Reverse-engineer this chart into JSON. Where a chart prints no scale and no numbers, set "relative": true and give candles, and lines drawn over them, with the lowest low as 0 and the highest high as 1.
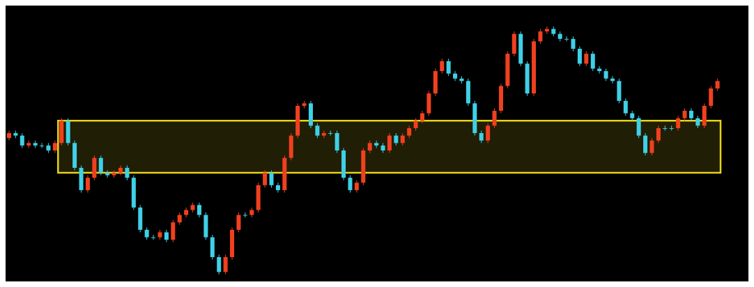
{
  "chart_data": {
    "type": "candlestick",
    "relative": true,
    "grid": false,
    "legend": false,
    "categories": [
      null,
      null,
      null,
      null,
      null,
      null,
      null,
      null,
      null,
      null,
      null,
      null,
      null,
      null,
      null,
      null,
      null,
      null,
      null,
      null,
      null,
      null,
      null,
      null,
      null,
      null,
      null,
      null,
      null,
      null,
      null,
      null,
      null,
      null,
      null,
      null,
      null,
      null,
      null,
      null,
      null,
      null,
      null,
      null,
      null,
      null,
      null,
      null,
      null,
      null,
      null,
      null,
      null,
      null,
      null,
      null,
      null,
      null,
      null,
      null,
      null,
      null,
      null,
      null,
      null,
      null,
      null,
      null,
      null,
      null,
      null,
      null,
      null,
      null,
      null,
      null,
      null,
      null,
      null,
      null,
      null,
      null,
      null,
      null,
      null,
      null,
      null,
      null,
      null,
      null,
      null,
      null,
      null,
      null,
      null,
      null,
      null,
      null,
      null,
      null,
      null,
      null,
      null,
      null,
      null,
      null,
      null,
      null,
      null
    ],
    "ohlc": [
      [
        0.55,
        0.58,
        0.54,
        0.57
      ],
      [
        0.57,
        0.58,
        0.55,
        0.56
      ],
      [
        0.56,
        0.57,
        0.51,
        0.52
      ],
      [
        0.52,
        0.54,
        0.51,
        0.53
      ],
      [
        0.53,
        0.54,
        0.51,
        0.52
      ],
      [
        0.52,
        0.53,
        0.51,
        0.52
      ],
      [
        0.52,
        0.53,
        0.49,
        0.5
      ],
      [
        0.5,
        0.54,
        0.49,
        0.53
      ],
      [
        0.53,
        0.63,
        0.52,
        0.62
      ],
      [
        0.62,
        0.63,
        0.52,
        0.53
      ],
      [
        0.53,
        0.54,
        0.42,
        0.43
      ],
      [
        0.43,
        0.44,
        0.33,
        0.34
      ],
      [
        0.34,
        0.4,
        0.33,
        0.39
      ],
      [
        0.39,
        0.48,
        0.38,
        0.47
      ],
      [
        0.47,
        0.48,
        0.4,
        0.41
      ],
      [
        0.41,
        0.42,
        0.39,
        0.4
      ],
      [
        0.4,
        0.42,
        0.39,
        0.41
      ],
      [
        0.41,
        0.44,
        0.4,
        0.43
      ],
      [
        0.43,
        0.44,
        0.38,
        0.39
      ],
      [
        0.39,
        0.4,
        0.26,
        0.27
      ],
      [
        0.27,
        0.28,
        0.17,
        0.18
      ],
      [
        0.18,
        0.19,
        0.14,
        0.15
      ],
      [
        0.15,
        0.16,
        0.14,
        0.15
      ],
      [
        0.15,
        0.18,
        0.14,
        0.17
      ],
      [
        0.17,
        0.18,
        0.13,
        0.14
      ],
      [
        0.14,
        0.22,
        0.13,
        0.21
      ],
      [
        0.21,
        0.25,
        0.2,
        0.24
      ],
      [
        0.24,
        0.27,
        0.23,
        0.26
      ],
      [
        0.26,
        0.29,
        0.25,
        0.28
      ],
      [
        0.28,
        0.29,
        0.23,
        0.24
      ],
      [
        0.24,
        0.25,
        0.14,
        0.15
      ],
      [
        0.15,
        0.16,
        0.06,
        0.07
      ],
      [
        0.07,
        0.08,
        0.0,
        0.01
      ],
      [
        0.01,
        0.08,
        0.0,
        0.07
      ],
      [
        0.07,
        0.19,
        0.06,
        0.18
      ],
      [
        0.18,
        0.25,
        0.17,
        0.24
      ],
      [
        0.24,
        0.25,
        0.23,
        0.24
      ],
      [
        0.24,
        0.27,
        0.23,
        0.26
      ],
      [
        0.26,
        0.37,
        0.25,
        0.36
      ],
      [
        0.36,
        0.42,
        0.35,
        0.41
      ],
      [
        0.41,
        0.42,
        0.35,
        0.36
      ],
      [
        0.36,
        0.37,
        0.33,
        0.34
      ],
      [
        0.34,
        0.48,
        0.33,
        0.47
      ],
      [
        0.47,
        0.57,
        0.46,
        0.56
      ],
      [
        0.56,
        0.69,
        0.55,
        0.68
      ],
      [
        0.68,
        0.7,
        0.67,
        0.69
      ],
      [
        0.69,
        0.7,
        0.59,
        0.6
      ],
      [
        0.6,
        0.61,
        0.55,
        0.56
      ],
      [
        0.56,
        0.58,
        0.55,
        0.57
      ],
      [
        0.57,
        0.58,
        0.56,
        0.57
      ],
      [
        0.57,
        0.58,
        0.49,
        0.5
      ],
      [
        0.5,
        0.51,
        0.38,
        0.39
      ],
      [
        0.39,
        0.4,
        0.33,
        0.34
      ],
      [
        0.34,
        0.38,
        0.33,
        0.37
      ],
      [
        0.37,
        0.51,
        0.36,
        0.5
      ],
      [
        0.5,
        0.54,
        0.49,
        0.53
      ],
      [
        0.53,
        0.54,
        0.51,
        0.52
      ],
      [
        0.52,
        0.53,
        0.49,
        0.5
      ],
      [
        0.5,
        0.57,
        0.49,
        0.56
      ],
      [
        0.56,
        0.57,
        0.52,
        0.53
      ],
      [
        0.53,
        0.57,
        0.52,
        0.56
      ],
      [
        0.56,
        0.6,
        0.55,
        0.59
      ],
      [
        0.59,
        0.63,
        0.58,
        0.62
      ],
      [
        0.62,
        0.66,
        0.61,
        0.65
      ],
      [
        0.65,
        0.74,
        0.64,
        0.73
      ],
      [
        0.73,
        0.83,
        0.72,
        0.82
      ],
      [
        0.82,
        0.87,
        0.81,
        0.86
      ],
      [
        0.86,
        0.87,
        0.8,
        0.81
      ],
      [
        0.81,
        0.82,
        0.78,
        0.79
      ],
      [
        0.79,
        0.8,
        0.77,
        0.78
      ],
      [
        0.78,
        0.79,
        0.68,
        0.69
      ],
      [
        0.69,
        0.7,
        0.56,
        0.57
      ],
      [
        0.57,
        0.58,
        0.53,
        0.54
      ],
      [
        0.54,
        0.61,
        0.53,
        0.6
      ],
      [
        0.6,
        0.67,
        0.59,
        0.66
      ],
      [
        0.66,
        0.77,
        0.65,
        0.76
      ],
      [
        0.76,
        0.9,
        0.75,
        0.89
      ],
      [
        0.89,
        0.98,
        0.88,
        0.97
      ],
      [
        0.97,
        0.98,
        0.84,
        0.85
      ],
      [
        0.85,
        0.86,
        0.72,
        0.73
      ],
      [
        0.73,
        0.95,
        0.72,
        0.94
      ],
      [
        0.94,
        0.99,
        0.93,
        0.98
      ],
      [
        0.98,
        1.0,
        0.97,
        0.99
      ],
      [
        0.99,
        1.0,
        0.96,
        0.97
      ],
      [
        0.97,
        0.98,
        0.94,
        0.95
      ],
      [
        0.95,
        0.96,
        0.94,
        0.95
      ],
      [
        0.95,
        0.96,
        0.9,
        0.91
      ],
      [
        0.91,
        0.92,
        0.84,
        0.85
      ],
      [
        0.85,
        0.9,
        0.84,
        0.89
      ],
      [
        0.89,
        0.9,
        0.82,
        0.83
      ],
      [
        0.83,
        0.84,
        0.81,
        0.82
      ],
      [
        0.82,
        0.83,
        0.78,
        0.79
      ],
      [
        0.79,
        0.8,
        0.77,
        0.78
      ],
      [
        0.78,
        0.79,
        0.69,
        0.7
      ],
      [
        0.7,
        0.71,
        0.64,
        0.65
      ],
      [
        0.65,
        0.66,
        0.62,
        0.63
      ],
      [
        0.63,
        0.64,
        0.55,
        0.56
      ],
      [
        0.56,
        0.57,
        0.48,
        0.49
      ],
      [
        0.49,
        0.55,
        0.48,
        0.54
      ],
      [
        0.54,
        0.6,
        0.53,
        0.59
      ],
      [
        0.59,
        0.6,
        0.58,
        0.59
      ],
      [
        0.59,
        0.6,
        0.58,
        0.59
      ],
      [
        0.59,
        0.64,
        0.58,
        0.63
      ],
      [
        0.63,
        0.67,
        0.62,
        0.66
      ],
      [
        0.66,
        0.67,
        0.62,
        0.63
      ],
      [
        0.63,
        0.64,
        0.59,
        0.6
      ],
      [
        0.6,
        0.69,
        0.59,
        0.68
      ],
      [
        0.68,
        0.76,
        0.67,
        0.75
      ],
      [
        0.75,
        0.79,
        0.74,
        0.78
      ]
    ],
    "colors": [
      "#f0401e",
      "#3fd0e6",
      "#3fd0e6",
      "#f0401e",
      "#3fd0e6",
      "#3fd0e6",
      "#3fd0e6",
      "#f0401e",
      "#f0401e",
      "#3fd0e6",
      "#3fd0e6",
      "#3fd0e6",
      "#f0401e",
      "#f0401e",
      "#3fd0e6",
      "#3fd0e6",
      "#f0401e",
      "#f0401e",
      "#3fd0e6",
      "#3fd0e6",
      "#3fd0e6",
      "#3fd0e6",
      "#3fd0e6",
      "#f0401e",
      "#3fd0e6",
      "#f0401e",
      "#f0401e",
      "#f0401e",
      "#f0401e",
      "#3fd0e6",
      "#3fd0e6",
      "#3fd0e6",
      "#3fd0e6",
      "#f0401e",
      "#f0401e",
      "#f0401e",
      "#3fd0e6",
      "#f0401e",
      "#f0401e",
      "#f0401e",
      "#3fd0e6",
      "#3fd0e6",
      "#f0401e",
      "#f0401e",
      "#f0401e",
      "#f0401e",
      "#3fd0e6",
      "#3fd0e6",
      "#f0401e",
      "#3fd0e6",
      "#3fd0e6",
      "#3fd0e6",
      "#3fd0e6",
      "#f0401e",
      "#f0401e",
      "#f0401e",
      "#3fd0e6",
      "#3fd0e6",
      "#f0401e",
      "#3fd0e6",
      "#f0401e",
      "#f0401e",
      "#f0401e",
      "#f0401e",
      "#f0401e",
      "#f0401e",
      "#f0401e",
      "#3fd0e6",
      "#3fd0e6",
      "#3fd0e6",
      "#3fd0e6",
      "#3fd0e6",
      "#3fd0e6",
      "#f0401e",
      "#f0401e",
      "#f0401e",
      "#f0401e",
      "#f0401e",
      "#3fd0e6",
      "#3fd0e6",
      "#f0401e",
      "#f0401e",
      "#f0401e",
      "#3fd0e6",
      "#3fd0e6",
      "#3fd0e6",
      "#3fd0e6",
      "#3fd0e6",
      "#f0401e",
      "#3fd0e6",
      "#3fd0e6",
      "#3fd0e6",
      "#3fd0e6",
      "#3fd0e6",
      "#3fd0e6",
      "#3fd0e6",
      "#3fd0e6",
      "#3fd0e6",
      "#f0401e",
      "#f0401e",
      "#3fd0e6",
      "#3fd0e6",
      "#f0401e",
      "#f0401e",
      "#3fd0e6",
      "#3fd0e6",
      "#f0401e",
      "#f0401e",
      "#f0401e"
    ],
    "bands": [
      {
        "axis": "y",
        "from": 0.41,
        "to": 0.62,
        "color": "#e6d21a"
      }
    ]
  }
}
